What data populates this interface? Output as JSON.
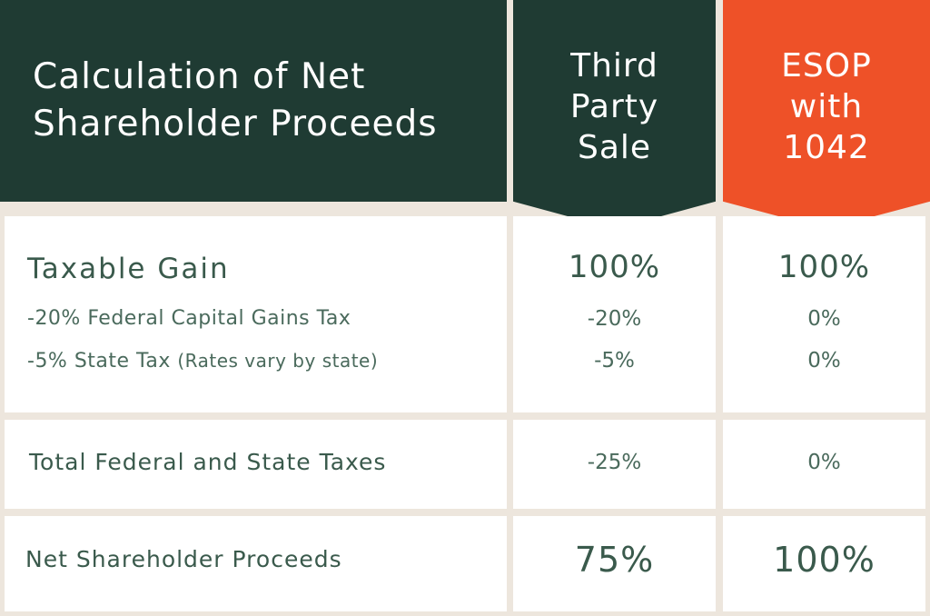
{
  "header": {
    "title_line1": "Calculation of Net",
    "title_line2": "Shareholder Proceeds",
    "col1_line1": "Third",
    "col1_line2": "Party",
    "col1_line3": "Sale",
    "col2_line1": "ESOP",
    "col2_line2": "with",
    "col2_line3": "1042"
  },
  "colors": {
    "dark_green": "#1f3b33",
    "orange": "#ee5128",
    "border": "#ede6dd",
    "text": "#3a5a4c"
  },
  "rows": {
    "taxable_gain": {
      "label": "Taxable Gain",
      "third": "100%",
      "esop": "100%"
    },
    "federal_tax": {
      "label": "-20% Federal Capital Gains Tax",
      "third": "-20%",
      "esop": "0%"
    },
    "state_tax": {
      "label": "-5% State Tax",
      "note": "(Rates vary by state)",
      "third": "-5%",
      "esop": "0%"
    },
    "total_taxes": {
      "label": "Total Federal and State Taxes",
      "third": "-25%",
      "esop": "0%"
    },
    "net_proceeds": {
      "label": "Net Shareholder Proceeds",
      "third": "75%",
      "esop": "100%"
    }
  }
}
